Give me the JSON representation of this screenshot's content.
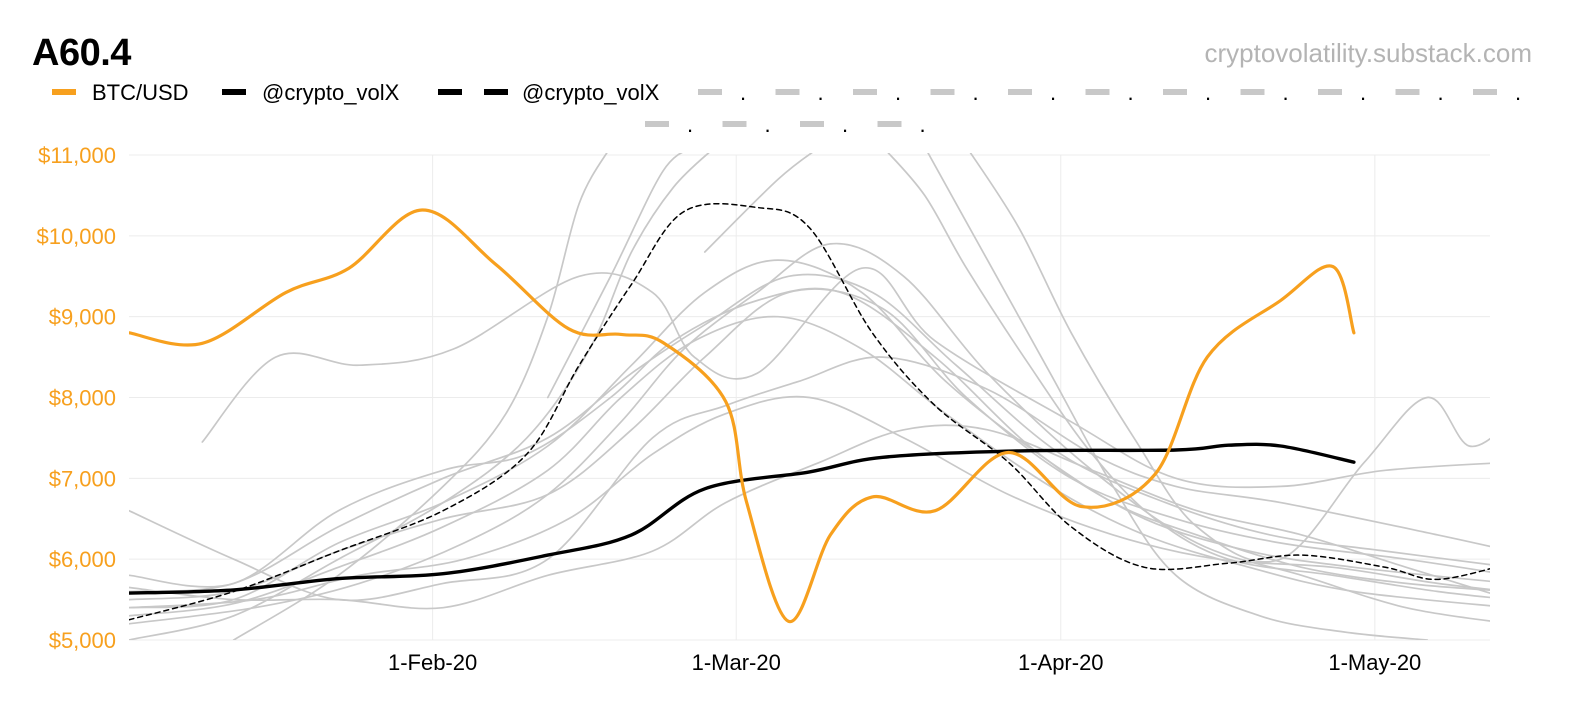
{
  "title": "A60.4",
  "source": "cryptovolatility.substack.com",
  "colors": {
    "btc": "#f7a01e",
    "vol": "#000000",
    "gray": "#c8c8c8",
    "grid": "#ececec",
    "axis_text": "#f7a01e",
    "x_text": "#000000"
  },
  "legend": [
    {
      "label": "BTC/USD",
      "style": "orange"
    },
    {
      "label": "@crypto_volX",
      "style": "black"
    },
    {
      "label": "@crypto_volX",
      "style": "black-dash"
    },
    {
      "label": ".",
      "style": "gray"
    },
    {
      "label": ".",
      "style": "gray"
    },
    {
      "label": ".",
      "style": "gray"
    },
    {
      "label": ".",
      "style": "gray"
    },
    {
      "label": ".",
      "style": "gray"
    },
    {
      "label": ".",
      "style": "gray"
    },
    {
      "label": ".",
      "style": "gray"
    },
    {
      "label": ".",
      "style": "gray"
    },
    {
      "label": ".",
      "style": "gray"
    },
    {
      "label": ".",
      "style": "gray"
    },
    {
      "label": ".",
      "style": "gray"
    },
    {
      "label": ".",
      "style": "gray"
    },
    {
      "label": ".",
      "style": "gray"
    },
    {
      "label": ".",
      "style": "gray"
    },
    {
      "label": ".",
      "style": "gray"
    }
  ],
  "chart_data": {
    "type": "line",
    "title": "A60.4",
    "x_start": "2020-01-03",
    "x_end": "2020-05-12",
    "x_ticks": [
      {
        "label": "1-Feb-20",
        "day": 29
      },
      {
        "label": "1-Mar-20",
        "day": 58
      },
      {
        "label": "1-Apr-20",
        "day": 89
      },
      {
        "label": "1-May-20",
        "day": 119
      }
    ],
    "ylim": [
      5000,
      11000
    ],
    "y_ticks": [
      5000,
      6000,
      7000,
      8000,
      9000,
      10000,
      11000
    ],
    "y_tick_labels": [
      "$5,000",
      "$6,000",
      "$7,000",
      "$8,000",
      "$9,000",
      "$10,000",
      "$11,000"
    ],
    "series": [
      {
        "name": "BTC/USD",
        "style": "orange",
        "points": [
          [
            0,
            8800
          ],
          [
            7,
            8670
          ],
          [
            15,
            9300
          ],
          [
            21,
            9600
          ],
          [
            28,
            10320
          ],
          [
            35,
            9650
          ],
          [
            42,
            8850
          ],
          [
            47,
            8780
          ],
          [
            51,
            8680
          ],
          [
            57,
            7950
          ],
          [
            59,
            6700
          ],
          [
            63,
            5230
          ],
          [
            67,
            6300
          ],
          [
            71,
            6770
          ],
          [
            77,
            6600
          ],
          [
            84,
            7320
          ],
          [
            91,
            6650
          ],
          [
            98,
            7050
          ],
          [
            103,
            8500
          ],
          [
            110,
            9200
          ],
          [
            115,
            9620
          ],
          [
            117,
            8800
          ]
        ]
      },
      {
        "name": "@crypto_volX",
        "style": "black",
        "points": [
          [
            0,
            5580
          ],
          [
            10,
            5620
          ],
          [
            20,
            5760
          ],
          [
            30,
            5820
          ],
          [
            40,
            6050
          ],
          [
            48,
            6300
          ],
          [
            55,
            6870
          ],
          [
            65,
            7080
          ],
          [
            72,
            7260
          ],
          [
            85,
            7340
          ],
          [
            100,
            7350
          ],
          [
            105,
            7410
          ],
          [
            110,
            7400
          ],
          [
            117,
            7200
          ]
        ]
      },
      {
        "name": "@crypto_volX",
        "style": "black-dash",
        "points": [
          [
            0,
            5250
          ],
          [
            10,
            5600
          ],
          [
            20,
            6100
          ],
          [
            30,
            6600
          ],
          [
            38,
            7300
          ],
          [
            43,
            8400
          ],
          [
            48,
            9400
          ],
          [
            53,
            10300
          ],
          [
            60,
            10350
          ],
          [
            65,
            10100
          ],
          [
            71,
            8800
          ],
          [
            77,
            7900
          ],
          [
            84,
            7200
          ],
          [
            90,
            6400
          ],
          [
            97,
            5900
          ],
          [
            105,
            5950
          ],
          [
            112,
            6050
          ],
          [
            120,
            5900
          ],
          [
            125,
            5750
          ],
          [
            132,
            5950
          ]
        ]
      },
      {
        "name": ".",
        "style": "gray",
        "points": [
          [
            7,
            7450
          ],
          [
            14,
            8500
          ],
          [
            22,
            8400
          ],
          [
            31,
            8600
          ],
          [
            43,
            9500
          ],
          [
            50,
            9300
          ],
          [
            54,
            8500
          ],
          [
            60,
            8300
          ],
          [
            70,
            9600
          ],
          [
            77,
            8700
          ],
          [
            90,
            7700
          ],
          [
            100,
            7000
          ],
          [
            110,
            6900
          ],
          [
            120,
            7100
          ],
          [
            132,
            7200
          ]
        ]
      },
      {
        "name": ".",
        "style": "gray",
        "points": [
          [
            0,
            6600
          ],
          [
            10,
            6000
          ],
          [
            20,
            5500
          ],
          [
            30,
            5700
          ],
          [
            40,
            6000
          ],
          [
            50,
            7500
          ],
          [
            57,
            7900
          ],
          [
            64,
            8200
          ],
          [
            72,
            8500
          ],
          [
            82,
            8100
          ],
          [
            92,
            7300
          ],
          [
            100,
            6900
          ],
          [
            110,
            6700
          ],
          [
            125,
            6300
          ],
          [
            132,
            6100
          ]
        ]
      },
      {
        "name": ".",
        "style": "gray",
        "points": [
          [
            0,
            5800
          ],
          [
            10,
            5700
          ],
          [
            20,
            6600
          ],
          [
            30,
            7100
          ],
          [
            38,
            7300
          ],
          [
            46,
            8000
          ],
          [
            52,
            8700
          ],
          [
            60,
            9200
          ],
          [
            68,
            9300
          ],
          [
            77,
            8500
          ],
          [
            86,
            7400
          ],
          [
            94,
            6700
          ],
          [
            102,
            6300
          ],
          [
            112,
            5900
          ],
          [
            122,
            5700
          ],
          [
            132,
            5600
          ]
        ]
      },
      {
        "name": ".",
        "style": "gray",
        "points": [
          [
            0,
            5400
          ],
          [
            10,
            5500
          ],
          [
            20,
            6200
          ],
          [
            30,
            6700
          ],
          [
            40,
            7400
          ],
          [
            48,
            8400
          ],
          [
            55,
            9300
          ],
          [
            62,
            9700
          ],
          [
            70,
            9300
          ],
          [
            78,
            8200
          ],
          [
            88,
            7200
          ],
          [
            97,
            6500
          ],
          [
            107,
            6100
          ],
          [
            117,
            5900
          ],
          [
            132,
            5700
          ]
        ]
      },
      {
        "name": ".",
        "style": "gray",
        "points": [
          [
            0,
            5300
          ],
          [
            10,
            5450
          ],
          [
            20,
            5900
          ],
          [
            30,
            6400
          ],
          [
            40,
            7100
          ],
          [
            47,
            8000
          ],
          [
            54,
            8700
          ],
          [
            62,
            9000
          ],
          [
            70,
            8600
          ],
          [
            78,
            7800
          ],
          [
            88,
            6900
          ],
          [
            97,
            6300
          ],
          [
            107,
            5900
          ],
          [
            117,
            5600
          ],
          [
            132,
            5400
          ]
        ]
      },
      {
        "name": ".",
        "style": "gray",
        "points": [
          [
            0,
            5600
          ],
          [
            10,
            5700
          ],
          [
            20,
            6400
          ],
          [
            30,
            7000
          ],
          [
            40,
            7500
          ],
          [
            48,
            8300
          ],
          [
            55,
            8900
          ],
          [
            63,
            9500
          ],
          [
            71,
            9300
          ],
          [
            79,
            8400
          ],
          [
            89,
            7300
          ],
          [
            99,
            6700
          ],
          [
            109,
            6300
          ],
          [
            120,
            6100
          ],
          [
            132,
            5900
          ]
        ]
      },
      {
        "name": ".",
        "style": "gray",
        "points": [
          [
            0,
            5500
          ],
          [
            10,
            5600
          ],
          [
            20,
            6100
          ],
          [
            30,
            6500
          ],
          [
            40,
            6800
          ],
          [
            48,
            7600
          ],
          [
            55,
            8500
          ],
          [
            63,
            9300
          ],
          [
            72,
            9100
          ],
          [
            80,
            8000
          ],
          [
            90,
            7000
          ],
          [
            100,
            6500
          ],
          [
            110,
            6200
          ],
          [
            122,
            6000
          ],
          [
            132,
            5800
          ]
        ]
      },
      {
        "name": ".",
        "style": "gray",
        "points": [
          [
            0,
            5400
          ],
          [
            12,
            5500
          ],
          [
            22,
            5800
          ],
          [
            32,
            6000
          ],
          [
            42,
            6500
          ],
          [
            50,
            7300
          ],
          [
            57,
            7800
          ],
          [
            65,
            8000
          ],
          [
            74,
            7500
          ],
          [
            84,
            6800
          ],
          [
            94,
            6300
          ],
          [
            104,
            6000
          ],
          [
            115,
            5900
          ],
          [
            125,
            5700
          ],
          [
            132,
            5600
          ]
        ]
      },
      {
        "name": ".",
        "style": "gray",
        "points": [
          [
            0,
            5200
          ],
          [
            12,
            5400
          ],
          [
            22,
            5700
          ],
          [
            32,
            6200
          ],
          [
            40,
            6800
          ],
          [
            47,
            7700
          ],
          [
            53,
            8600
          ],
          [
            60,
            9300
          ],
          [
            67,
            9900
          ],
          [
            74,
            9500
          ],
          [
            82,
            8300
          ],
          [
            92,
            7100
          ],
          [
            102,
            6200
          ],
          [
            112,
            5800
          ],
          [
            122,
            5400
          ],
          [
            132,
            5200
          ]
        ]
      },
      {
        "name": ".",
        "style": "gray",
        "points": [
          [
            0,
            5000
          ],
          [
            10,
            5300
          ],
          [
            20,
            6000
          ],
          [
            30,
            6700
          ],
          [
            38,
            7500
          ],
          [
            44,
            8600
          ],
          [
            48,
            9800
          ],
          [
            52,
            10600
          ],
          [
            56,
            11100
          ]
        ]
      },
      {
        "name": ".",
        "style": "gray",
        "points": [
          [
            10,
            5000
          ],
          [
            20,
            5800
          ],
          [
            30,
            6900
          ],
          [
            36,
            7800
          ],
          [
            40,
            9000
          ],
          [
            43,
            10400
          ],
          [
            46,
            11100
          ]
        ]
      },
      {
        "name": ".",
        "style": "gray",
        "points": [
          [
            40,
            8000
          ],
          [
            46,
            9500
          ],
          [
            51,
            10800
          ],
          [
            54,
            11100
          ]
        ]
      },
      {
        "name": ".",
        "style": "gray",
        "points": [
          [
            55,
            9800
          ],
          [
            62,
            10700
          ],
          [
            66,
            11100
          ]
        ]
      },
      {
        "name": ".",
        "style": "gray",
        "points": [
          [
            72,
            11100
          ],
          [
            76,
            10500
          ],
          [
            80,
            9600
          ],
          [
            86,
            8400
          ],
          [
            92,
            7300
          ],
          [
            98,
            6500
          ],
          [
            105,
            6000
          ],
          [
            115,
            5800
          ],
          [
            125,
            5600
          ],
          [
            132,
            5500
          ]
        ]
      },
      {
        "name": ".",
        "style": "gray",
        "points": [
          [
            76,
            11100
          ],
          [
            82,
            9700
          ],
          [
            88,
            8300
          ],
          [
            94,
            6900
          ],
          [
            100,
            5800
          ],
          [
            108,
            5300
          ],
          [
            116,
            5100
          ],
          [
            124,
            5000
          ]
        ]
      },
      {
        "name": ".",
        "style": "gray",
        "points": [
          [
            80,
            11100
          ],
          [
            85,
            10100
          ],
          [
            90,
            8800
          ],
          [
            96,
            7500
          ],
          [
            102,
            6400
          ],
          [
            110,
            6000
          ],
          [
            118,
            7200
          ],
          [
            124,
            8000
          ],
          [
            128,
            7400
          ],
          [
            132,
            7700
          ]
        ]
      },
      {
        "name": ".",
        "style": "gray",
        "points": [
          [
            0,
            5650
          ],
          [
            10,
            5500
          ],
          [
            20,
            5500
          ],
          [
            30,
            5400
          ],
          [
            40,
            5800
          ],
          [
            50,
            6100
          ],
          [
            57,
            6700
          ],
          [
            66,
            7200
          ],
          [
            74,
            7600
          ],
          [
            82,
            7600
          ],
          [
            92,
            7100
          ],
          [
            102,
            6600
          ],
          [
            112,
            6300
          ],
          [
            122,
            5900
          ],
          [
            132,
            5500
          ]
        ]
      }
    ]
  }
}
